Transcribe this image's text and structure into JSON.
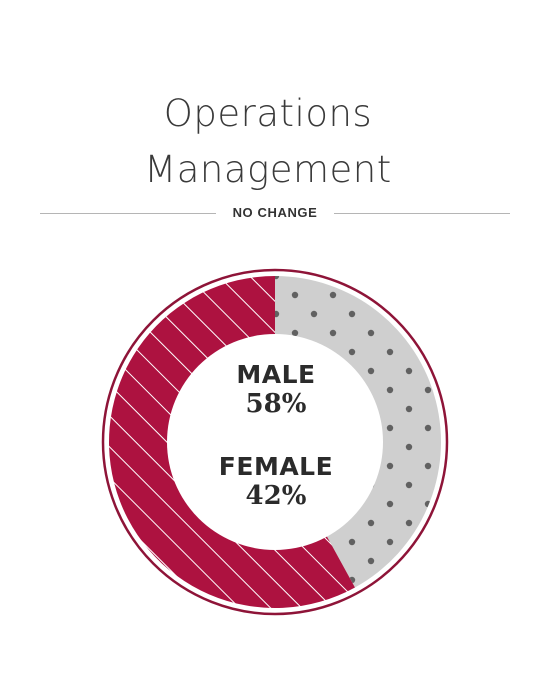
{
  "header": {
    "title_line1": "Operations",
    "title_line2": "Management",
    "subtitle": "NO CHANGE"
  },
  "colors": {
    "male": "#ad1240",
    "female": "#cfcfcf",
    "female_dots": "#616161",
    "ring": "#8e1438",
    "hatch": "#ffffff"
  },
  "chart_data": {
    "type": "pie",
    "title": "Operations Management",
    "subtitle": "NO CHANGE",
    "categories": [
      "MALE",
      "FEMALE"
    ],
    "values": [
      58,
      42
    ],
    "labels": [
      "58%",
      "42%"
    ],
    "series": [
      {
        "name": "MALE",
        "value": 58,
        "fill": "hatched"
      },
      {
        "name": "FEMALE",
        "value": 42,
        "fill": "dotted"
      }
    ]
  }
}
